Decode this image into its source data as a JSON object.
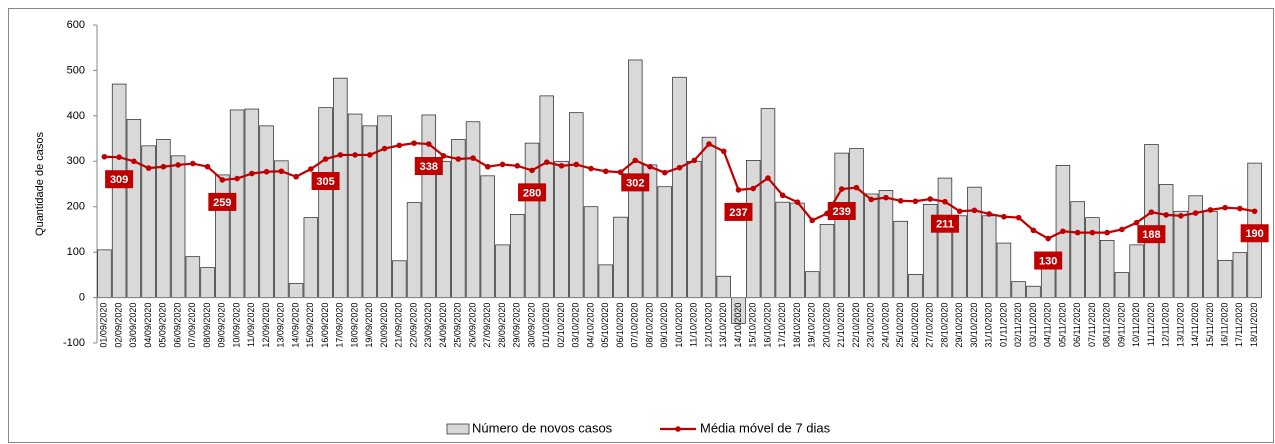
{
  "chart_data": {
    "type": "bar-line",
    "y_label": "Quantidade de casos",
    "categories": [
      "01/09/2020",
      "02/09/2020",
      "03/09/2020",
      "04/09/2020",
      "05/09/2020",
      "06/09/2020",
      "07/09/2020",
      "08/09/2020",
      "09/09/2020",
      "10/09/2020",
      "11/09/2020",
      "12/09/2020",
      "13/09/2020",
      "14/09/2020",
      "15/09/2020",
      "16/09/2020",
      "17/09/2020",
      "18/09/2020",
      "19/09/2020",
      "20/09/2020",
      "21/09/2020",
      "22/09/2020",
      "23/09/2020",
      "24/09/2020",
      "25/09/2020",
      "26/09/2020",
      "27/09/2020",
      "28/09/2020",
      "29/09/2020",
      "30/09/2020",
      "01/10/2020",
      "02/10/2020",
      "03/10/2020",
      "04/10/2020",
      "05/10/2020",
      "06/10/2020",
      "07/10/2020",
      "08/10/2020",
      "09/10/2020",
      "10/10/2020",
      "11/10/2020",
      "12/10/2020",
      "13/10/2020",
      "14/10/2020",
      "15/10/2020",
      "16/10/2020",
      "17/10/2020",
      "18/10/2020",
      "19/10/2020",
      "20/10/2020",
      "21/10/2020",
      "22/10/2020",
      "23/10/2020",
      "24/10/2020",
      "25/10/2020",
      "26/10/2020",
      "27/10/2020",
      "28/10/2020",
      "29/10/2020",
      "30/10/2020",
      "31/10/2020",
      "01/11/2020",
      "02/11/2020",
      "03/11/2020",
      "04/11/2020",
      "05/11/2020",
      "06/11/2020",
      "07/11/2020",
      "08/11/2020",
      "09/11/2020",
      "10/11/2020",
      "11/11/2020",
      "12/11/2020",
      "13/11/2020",
      "14/11/2020",
      "15/11/2020",
      "16/11/2020",
      "17/11/2020",
      "18/11/2020"
    ],
    "series": [
      {
        "name": "Número de novos casos",
        "kind": "bar",
        "color": "#d9d9d9",
        "values": [
          105,
          470,
          392,
          334,
          348,
          312,
          90,
          66,
          270,
          413,
          415,
          378,
          301,
          31,
          176,
          418,
          483,
          404,
          378,
          400,
          81,
          209,
          402,
          300,
          348,
          387,
          268,
          116,
          183,
          340,
          444,
          300,
          407,
          200,
          72,
          177,
          523,
          292,
          244,
          485,
          300,
          353,
          47,
          -57,
          302,
          416,
          210,
          208,
          57,
          161,
          318,
          328,
          228,
          236,
          168,
          51,
          205,
          263,
          180,
          243,
          180,
          120,
          35,
          25,
          95,
          291,
          211,
          176,
          126,
          55,
          116,
          337,
          249,
          190,
          224,
          190,
          82,
          99,
          296
        ]
      },
      {
        "name": "Média móvel de 7 dias",
        "kind": "line",
        "color": "#c00000",
        "values": [
          310,
          309,
          300,
          285,
          288,
          292,
          295,
          288,
          259,
          262,
          273,
          277,
          278,
          266,
          283,
          305,
          314,
          314,
          314,
          328,
          335,
          340,
          338,
          312,
          305,
          307,
          288,
          293,
          290,
          280,
          298,
          290,
          293,
          284,
          278,
          276,
          302,
          288,
          275,
          286,
          302,
          338,
          322,
          237,
          240,
          263,
          225,
          210,
          170,
          185,
          239,
          242,
          216,
          220,
          213,
          212,
          217,
          211,
          190,
          192,
          184,
          178,
          176,
          148,
          130,
          146,
          143,
          143,
          143,
          150,
          165,
          188,
          182,
          180,
          186,
          193,
          198,
          196,
          190
        ],
        "value_labels": [
          null,
          "309",
          null,
          null,
          null,
          null,
          null,
          null,
          "259",
          null,
          null,
          null,
          null,
          null,
          null,
          "305",
          null,
          null,
          null,
          null,
          null,
          null,
          "338",
          null,
          null,
          null,
          null,
          null,
          null,
          "280",
          null,
          null,
          null,
          null,
          null,
          null,
          "302",
          null,
          null,
          null,
          null,
          null,
          null,
          "237",
          null,
          null,
          null,
          null,
          null,
          null,
          "239",
          null,
          null,
          null,
          null,
          null,
          null,
          "211",
          null,
          null,
          null,
          null,
          null,
          null,
          "130",
          null,
          null,
          null,
          null,
          null,
          null,
          "188",
          null,
          null,
          null,
          null,
          null,
          null,
          "190"
        ]
      }
    ],
    "ylim": [
      -100,
      600
    ],
    "yticks": [
      -100,
      0,
      100,
      200,
      300,
      400,
      500,
      600
    ],
    "legend": "bottom"
  }
}
